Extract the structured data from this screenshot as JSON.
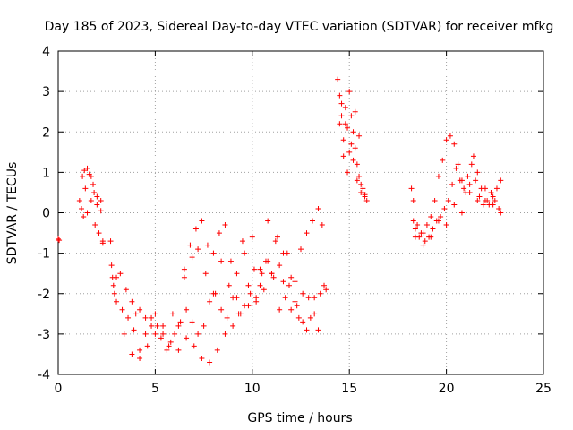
{
  "chart_data": {
    "type": "scatter",
    "title": "Day 185 of 2023, Sidereal Day-to-day VTEC variation (SDTVAR) for receiver mfkg",
    "xlabel": "GPS time / hours",
    "ylabel": "SDTVAR / TECUs",
    "xlim": [
      0,
      25
    ],
    "ylim": [
      -4,
      4
    ],
    "xticks": [
      "0",
      "5",
      "10",
      "15",
      "20",
      "25"
    ],
    "yticks": [
      "-4",
      "-3",
      "-2",
      "-1",
      "0",
      "1",
      "2",
      "3",
      "4"
    ],
    "grid": true,
    "marker": "+",
    "series": [
      {
        "name": "SDTVAR",
        "color": "#ff0000",
        "x": [
          0.0,
          0.05,
          1.1,
          1.25,
          1.35,
          1.5,
          1.7,
          1.85,
          2.0,
          2.2,
          2.3,
          1.2,
          1.4,
          1.6,
          1.8,
          2.0,
          2.2,
          1.3,
          1.5,
          1.7,
          1.9,
          2.1,
          2.3,
          2.7,
          2.75,
          2.8,
          2.85,
          2.9,
          3.0,
          3.2,
          3.5,
          3.8,
          4.0,
          4.2,
          4.5,
          4.8,
          5.0,
          5.3,
          5.6,
          5.9,
          6.2,
          6.5,
          6.8,
          7.1,
          7.4,
          7.7,
          8.0,
          8.3,
          8.6,
          8.9,
          9.2,
          9.5,
          9.8,
          10.1,
          10.4,
          10.7,
          11.0,
          11.3,
          11.6,
          11.9,
          12.2,
          12.5,
          12.8,
          13.1,
          13.4,
          13.6,
          3.0,
          3.3,
          3.6,
          3.9,
          4.2,
          4.5,
          4.8,
          5.1,
          5.4,
          5.7,
          6.0,
          6.3,
          6.6,
          6.9,
          7.2,
          7.5,
          7.8,
          8.1,
          8.4,
          8.7,
          9.0,
          9.3,
          9.6,
          9.9,
          10.2,
          10.5,
          10.8,
          11.1,
          11.4,
          11.7,
          12.0,
          12.3,
          12.6,
          12.9,
          13.2,
          13.5,
          3.4,
          3.8,
          4.2,
          4.6,
          5.0,
          5.4,
          5.8,
          6.2,
          6.6,
          7.0,
          7.4,
          7.8,
          8.2,
          8.6,
          9.0,
          9.4,
          9.8,
          10.2,
          10.6,
          11.0,
          11.4,
          11.8,
          12.2,
          12.6,
          13.0,
          13.4,
          13.8,
          6.5,
          6.9,
          7.2,
          7.6,
          8.0,
          8.4,
          8.8,
          9.2,
          9.6,
          10.0,
          10.4,
          10.8,
          11.2,
          11.6,
          12.0,
          12.4,
          12.8,
          13.2,
          13.7,
          14.4,
          14.5,
          14.6,
          14.7,
          14.8,
          14.9,
          15.0,
          15.1,
          15.2,
          15.3,
          15.4,
          15.5,
          15.6,
          15.7,
          15.8,
          15.9,
          14.5,
          14.7,
          14.9,
          15.1,
          15.3,
          15.5,
          15.7,
          14.6,
          14.8,
          15.0,
          15.2,
          15.4,
          15.6,
          15.8,
          18.2,
          18.3,
          18.4,
          18.6,
          18.8,
          19.0,
          19.2,
          19.4,
          19.6,
          19.8,
          20.0,
          20.2,
          20.4,
          20.6,
          20.8,
          21.0,
          21.2,
          21.4,
          21.6,
          21.8,
          22.0,
          22.2,
          22.4,
          22.6,
          22.8,
          18.3,
          18.5,
          18.7,
          18.9,
          19.1,
          19.3,
          19.5,
          19.7,
          19.9,
          20.1,
          20.3,
          20.5,
          20.7,
          20.9,
          21.1,
          21.3,
          21.5,
          21.7,
          21.9,
          22.1,
          22.3,
          22.5,
          22.7,
          18.4,
          18.8,
          19.2,
          19.6,
          20.0,
          20.4,
          20.8,
          21.2,
          21.6,
          22.0,
          22.4,
          22.8
        ],
        "y": [
          -0.65,
          -0.68,
          0.3,
          0.9,
          1.05,
          1.1,
          0.9,
          0.5,
          0.2,
          0.05,
          -0.7,
          0.1,
          0.6,
          0.95,
          0.7,
          0.4,
          0.3,
          -0.1,
          0.0,
          0.3,
          -0.3,
          -0.5,
          -0.75,
          -0.7,
          -1.3,
          -1.6,
          -1.8,
          -2.0,
          -1.6,
          -1.5,
          -1.9,
          -2.2,
          -2.5,
          -2.4,
          -2.6,
          -2.8,
          -2.5,
          -3.1,
          -3.4,
          -2.5,
          -2.8,
          -1.6,
          -0.8,
          -0.4,
          -0.2,
          -0.8,
          -1.0,
          -0.5,
          -0.3,
          -1.2,
          -1.5,
          -0.7,
          -1.8,
          -1.4,
          -1.8,
          -1.2,
          -1.5,
          -0.6,
          -1.0,
          -1.8,
          -2.2,
          -0.9,
          -0.5,
          -0.2,
          0.1,
          -0.3,
          -2.2,
          -2.4,
          -2.6,
          -2.9,
          -3.4,
          -3.0,
          -2.6,
          -2.8,
          -3.0,
          -3.3,
          -3.0,
          -2.7,
          -2.4,
          -2.7,
          -3.0,
          -2.8,
          -2.2,
          -2.0,
          -2.4,
          -2.6,
          -2.1,
          -2.5,
          -2.3,
          -2.0,
          -2.2,
          -1.5,
          -1.2,
          -1.6,
          -2.4,
          -2.1,
          -1.6,
          -2.3,
          -2.7,
          -2.1,
          -2.5,
          -2.0,
          -3.0,
          -3.5,
          -3.6,
          -3.3,
          -3.0,
          -2.8,
          -3.2,
          -3.4,
          -3.1,
          -3.3,
          -3.6,
          -3.7,
          -3.4,
          -3.0,
          -2.8,
          -2.5,
          -2.3,
          -2.1,
          -1.9,
          -1.5,
          -1.3,
          -1.0,
          -1.7,
          -2.0,
          -2.6,
          -2.9,
          -1.9,
          -1.4,
          -1.1,
          -0.9,
          -1.5,
          -2.0,
          -1.2,
          -1.8,
          -2.1,
          -1.0,
          -0.6,
          -1.4,
          -0.2,
          -0.7,
          -1.7,
          -2.4,
          -2.6,
          -2.9,
          -2.1,
          -1.8,
          3.3,
          2.9,
          2.4,
          1.8,
          2.6,
          2.1,
          3.0,
          2.4,
          2.0,
          1.6,
          1.2,
          0.9,
          0.7,
          0.5,
          0.4,
          0.3,
          2.2,
          1.4,
          1.0,
          1.7,
          2.5,
          1.9,
          0.6,
          2.7,
          2.2,
          1.5,
          1.3,
          0.8,
          0.5,
          0.45,
          0.6,
          0.3,
          -0.4,
          -0.6,
          -0.5,
          -0.3,
          -0.1,
          0.3,
          0.9,
          1.3,
          1.8,
          1.9,
          1.7,
          1.2,
          0.8,
          0.5,
          0.7,
          1.4,
          1.0,
          0.6,
          0.3,
          0.2,
          0.4,
          0.6,
          0.8,
          -0.2,
          -0.3,
          -0.5,
          -0.7,
          -0.6,
          -0.4,
          -0.2,
          -0.1,
          0.1,
          0.3,
          0.7,
          1.1,
          0.8,
          0.6,
          0.9,
          1.2,
          0.8,
          0.4,
          0.2,
          0.3,
          0.5,
          0.3,
          0.1,
          -0.6,
          -0.8,
          -0.6,
          -0.2,
          -0.3,
          0.2,
          0.0,
          0.5,
          0.3,
          0.6,
          0.2,
          0.0
        ]
      }
    ]
  }
}
